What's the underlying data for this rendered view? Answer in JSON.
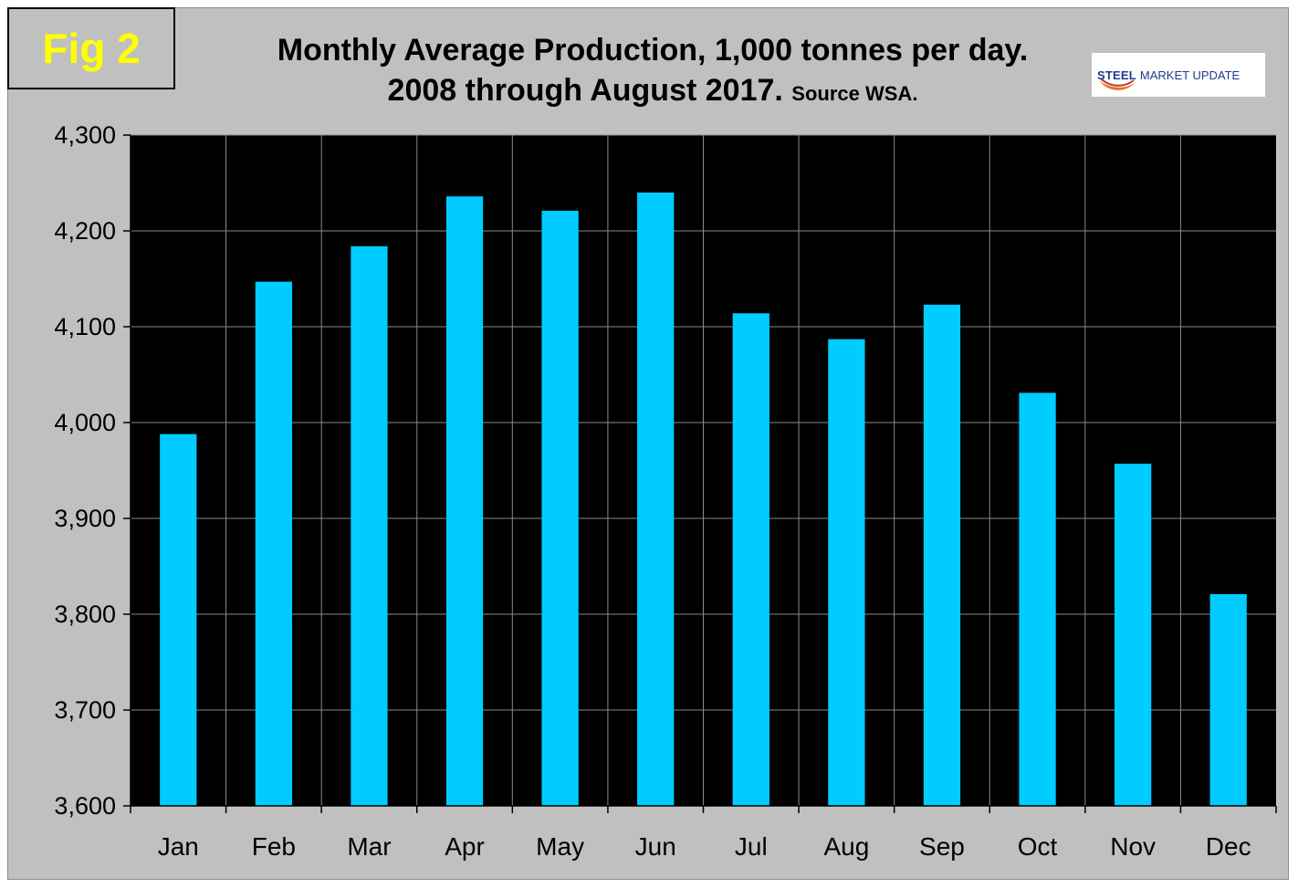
{
  "figure_label": "Fig 2",
  "title_line1": "Monthly Average Production, 1,000 tonnes per day.",
  "title_line2_main": "2008 through August 2017.",
  "title_line2_source": "Source WSA.",
  "logo": {
    "word_bold": "STEEL",
    "word_rest": "MARKET UPDATE"
  },
  "colors": {
    "bar": "#00ccff",
    "plot_background": "#000000",
    "frame_background": "#c0c0c0",
    "figure_label_text": "#ffff00",
    "gridline": "#8a8a8a"
  },
  "chart_data": {
    "type": "bar",
    "categories": [
      "Jan",
      "Feb",
      "Mar",
      "Apr",
      "May",
      "Jun",
      "Jul",
      "Aug",
      "Sep",
      "Oct",
      "Nov",
      "Dec"
    ],
    "values": [
      3988,
      4147,
      4184,
      4236,
      4221,
      4240,
      4114,
      4087,
      4123,
      4031,
      3957,
      3821
    ],
    "ylim": [
      3600,
      4300
    ],
    "yticks": [
      3600,
      3700,
      3800,
      3900,
      4000,
      4100,
      4200,
      4300
    ],
    "ytick_labels": [
      "3,600",
      "3,700",
      "3,800",
      "3,900",
      "4,000",
      "4,100",
      "4,200",
      "4,300"
    ],
    "grid": true,
    "legend": "none"
  }
}
